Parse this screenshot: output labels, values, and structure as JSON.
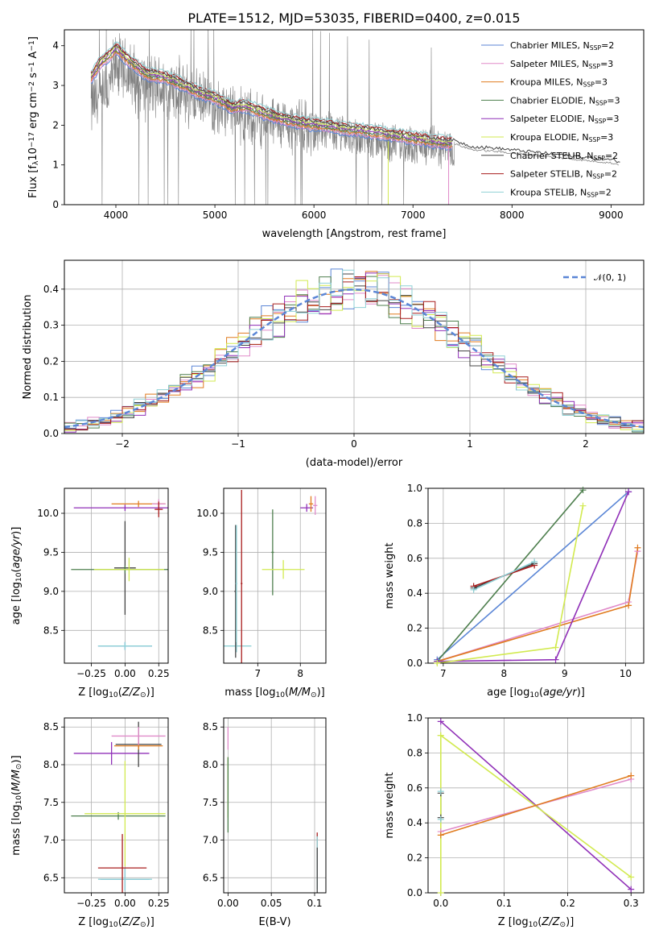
{
  "colors": {
    "Chabrier MILES": "#5b86d6",
    "Salpeter MILES": "#e08ac9",
    "Kroupa MILES": "#e07b1f",
    "Chabrier ELODIE": "#4e7f4e",
    "Salpeter ELODIE": "#9030b8",
    "Kroupa ELODIE": "#d2ea50",
    "Chabrier STELIB": "#444444",
    "Salpeter STELIB": "#a81d1d",
    "Kroupa STELIB": "#8fd1d6"
  },
  "chart_data": [
    {
      "id": "spectrum",
      "type": "line",
      "title": "PLATE=1512, MJD=53035, FIBERID=0400, z=0.015",
      "xlabel": "wavelength [Angstrom, rest frame]",
      "ylabel": "Flux [f_λ 10^-17 erg cm^-2 s^-1 A^-1]",
      "xlim": [
        3480,
        9330
      ],
      "ylim": [
        0,
        4.4
      ],
      "xticks": [
        4000,
        5000,
        6000,
        7000,
        8000,
        9000
      ],
      "yticks": [
        0,
        1,
        2,
        3,
        4
      ],
      "grid": false,
      "legend_position": "top-right",
      "legend": [
        {
          "label": "Chabrier MILES, N",
          "sub": "SSP",
          "suffix": "=2"
        },
        {
          "label": "Salpeter MILES, N",
          "sub": "SSP",
          "suffix": "=3"
        },
        {
          "label": "Kroupa MILES, N",
          "sub": "SSP",
          "suffix": "=3"
        },
        {
          "label": "Chabrier ELODIE, N",
          "sub": "SSP",
          "suffix": "=3"
        },
        {
          "label": "Salpeter ELODIE, N",
          "sub": "SSP",
          "suffix": "=3"
        },
        {
          "label": "Kroupa ELODIE, N",
          "sub": "SSP",
          "suffix": "=3"
        },
        {
          "label": "Chabrier STELIB, N",
          "sub": "SSP",
          "suffix": "=2"
        },
        {
          "label": "Salpeter STELIB, N",
          "sub": "SSP",
          "suffix": "=2"
        },
        {
          "label": "Kroupa STELIB, N",
          "sub": "SSP",
          "suffix": "=2"
        }
      ],
      "data_envelope": {
        "x": [
          3750,
          3900,
          4000,
          4100,
          4300,
          4500,
          4800,
          5000,
          5200,
          5500,
          5800,
          6000,
          6300,
          6700,
          7000,
          7400
        ],
        "y": [
          2.5,
          2.7,
          3.5,
          3.3,
          3.0,
          2.9,
          2.7,
          2.5,
          2.3,
          2.1,
          2.0,
          1.9,
          1.75,
          1.6,
          1.5,
          1.4
        ]
      },
      "model_curve": {
        "x": [
          3750,
          3850,
          3950,
          4000,
          4100,
          4200,
          4300,
          4500,
          4700,
          4860,
          5000,
          5170,
          5300,
          5500,
          5700,
          5900,
          6100,
          6300,
          6560,
          6800,
          7000,
          7200,
          7400,
          7600,
          7800,
          8000,
          8200,
          8400,
          8600,
          8800,
          9000,
          9100
        ],
        "y": [
          3.2,
          3.6,
          3.8,
          3.95,
          3.7,
          3.5,
          3.3,
          3.2,
          3.0,
          2.8,
          2.7,
          2.45,
          2.5,
          2.3,
          2.15,
          2.05,
          2.0,
          1.92,
          1.85,
          1.75,
          1.68,
          1.6,
          1.55,
          1.38,
          1.35,
          1.3,
          1.25,
          1.2,
          1.15,
          1.1,
          1.05,
          1.0
        ]
      }
    },
    {
      "id": "residuals",
      "type": "line",
      "xlabel": "(data-model)/error",
      "ylabel": "Normed distribution",
      "xlim": [
        -2.5,
        2.5
      ],
      "ylim": [
        0,
        0.48
      ],
      "xticks": [
        -2,
        -1,
        0,
        1,
        2
      ],
      "yticks": [
        0.0,
        0.1,
        0.2,
        0.3,
        0.4
      ],
      "grid": true,
      "legend_position": "top-right",
      "legend_label": "𝒩(0, 1)",
      "bin_width": 0.1,
      "normal": {
        "mean": 0,
        "sigma": 1
      }
    },
    {
      "id": "age_vs_Z",
      "type": "scatter",
      "xlabel": "Z [log10(Z/Z⊙)]",
      "ylabel": "age  [log10(age/yr)]",
      "xlim": [
        -0.45,
        0.32
      ],
      "ylim": [
        8.08,
        10.32
      ],
      "xticks": [
        -0.25,
        0.0,
        0.25
      ],
      "yticks": [
        8.5,
        9.0,
        9.5,
        10.0
      ],
      "grid": true,
      "errorbars": [
        {
          "series": "Chabrier MILES",
          "x": 0.0,
          "y": 8.3,
          "xerr": 0.2,
          "yerr": 0.05
        },
        {
          "series": "Kroupa STELIB",
          "x": 0.0,
          "y": 8.3,
          "xerr": 0.2,
          "yerr": 0.05
        },
        {
          "series": "Chabrier STELIB",
          "x": 0.0,
          "y": 9.3,
          "xerr": 0.08,
          "yerr": 0.6
        },
        {
          "series": "Chabrier ELODIE",
          "x": 0.0,
          "y": 9.28,
          "xerr": 0.4,
          "yerr": 0.05
        },
        {
          "series": "Kroupa ELODIE",
          "x": 0.03,
          "y": 9.28,
          "xerr": 0.26,
          "yerr": 0.15
        },
        {
          "series": "Salpeter ELODIE",
          "x": 0.0,
          "y": 10.07,
          "xerr": 0.38,
          "yerr": 0.04
        },
        {
          "series": "Kroupa MILES",
          "x": 0.1,
          "y": 10.12,
          "xerr": 0.2,
          "yerr": 0.04
        },
        {
          "series": "Salpeter MILES",
          "x": 0.25,
          "y": 10.12,
          "xerr": 0.05,
          "yerr": 0.06
        },
        {
          "series": "Salpeter STELIB",
          "x": 0.25,
          "y": 10.05,
          "xerr": 0.03,
          "yerr": 0.1
        }
      ]
    },
    {
      "id": "age_vs_mass",
      "type": "scatter",
      "xlabel": "mass [log10(M/M⊙)]",
      "ylabel": "",
      "xlim": [
        6.2,
        8.6
      ],
      "ylim": [
        8.08,
        10.32
      ],
      "xticks": [
        7,
        8
      ],
      "yticks": [
        8.5,
        9.0,
        9.5,
        10.0
      ],
      "grid": true,
      "errorbars": [
        {
          "series": "Kroupa STELIB",
          "x": 6.5,
          "y": 8.3,
          "xerr": 0.35,
          "yerr": 0.08
        },
        {
          "series": "Chabrier STELIB",
          "x": 6.48,
          "y": 9.0,
          "xerr": 0.03,
          "yerr": 0.85
        },
        {
          "series": "Kroupa STELIB",
          "x": 6.5,
          "y": 9.1,
          "xerr": 0.02,
          "yerr": 0.75
        },
        {
          "series": "Salpeter STELIB",
          "x": 6.62,
          "y": 9.1,
          "xerr": 0.02,
          "yerr": 1.2
        },
        {
          "series": "Chabrier ELODIE",
          "x": 7.35,
          "y": 9.5,
          "xerr": 0.03,
          "yerr": 0.55
        },
        {
          "series": "Kroupa ELODIE",
          "x": 7.6,
          "y": 9.28,
          "xerr": 0.5,
          "yerr": 0.12
        },
        {
          "series": "Salpeter ELODIE",
          "x": 8.15,
          "y": 10.07,
          "xerr": 0.15,
          "yerr": 0.05
        },
        {
          "series": "Kroupa MILES",
          "x": 8.25,
          "y": 10.12,
          "xerr": 0.05,
          "yerr": 0.1
        },
        {
          "series": "Salpeter MILES",
          "x": 8.35,
          "y": 10.1,
          "xerr": 0.05,
          "yerr": 0.12
        }
      ]
    },
    {
      "id": "weight_vs_age",
      "type": "line",
      "xlabel": "age  [log10(age/yr)]",
      "ylabel": "mass weight",
      "xlim": [
        6.75,
        10.3
      ],
      "ylim": [
        0,
        1.0
      ],
      "xticks": [
        7,
        8,
        9,
        10
      ],
      "yticks": [
        0.0,
        0.2,
        0.4,
        0.6,
        0.8,
        1.0
      ],
      "grid": true,
      "series": [
        {
          "name": "Chabrier MILES",
          "x": [
            6.9,
            10.05
          ],
          "y": [
            0.02,
            0.98
          ]
        },
        {
          "name": "Salpeter MILES",
          "x": [
            6.9,
            10.05,
            10.2
          ],
          "y": [
            0.01,
            0.35,
            0.64
          ]
        },
        {
          "name": "Kroupa MILES",
          "x": [
            6.9,
            10.05,
            10.2
          ],
          "y": [
            0.01,
            0.33,
            0.66
          ]
        },
        {
          "name": "Chabrier ELODIE",
          "x": [
            6.9,
            9.3
          ],
          "y": [
            0.01,
            0.99
          ]
        },
        {
          "name": "Salpeter ELODIE",
          "x": [
            6.9,
            8.85,
            10.05
          ],
          "y": [
            0.01,
            0.02,
            0.98
          ]
        },
        {
          "name": "Kroupa ELODIE",
          "x": [
            6.9,
            8.85,
            9.3
          ],
          "y": [
            0.0,
            0.09,
            0.9
          ]
        },
        {
          "name": "Chabrier STELIB",
          "x": [
            7.5,
            8.5
          ],
          "y": [
            0.43,
            0.57
          ]
        },
        {
          "name": "Salpeter STELIB",
          "x": [
            7.5,
            8.5
          ],
          "y": [
            0.44,
            0.56
          ]
        },
        {
          "name": "Kroupa STELIB",
          "x": [
            7.5,
            8.5
          ],
          "y": [
            0.42,
            0.58
          ]
        }
      ]
    },
    {
      "id": "mass_vs_Z",
      "type": "scatter",
      "xlabel": "Z [log10(Z/Z⊙)]",
      "ylabel": "mass [log10(M/M⊙)]",
      "xlim": [
        -0.45,
        0.32
      ],
      "ylim": [
        6.3,
        8.62
      ],
      "xticks": [
        -0.25,
        0.0,
        0.25
      ],
      "yticks": [
        6.5,
        7.0,
        7.5,
        8.0,
        8.5
      ],
      "grid": true,
      "errorbars": [
        {
          "series": "Chabrier MILES",
          "x": 0.0,
          "y": 6.48,
          "xerr": 0.18,
          "yerr": 0.15
        },
        {
          "series": "Kroupa STELIB",
          "x": 0.0,
          "y": 6.48,
          "xerr": 0.2,
          "yerr": 0.15
        },
        {
          "series": "Salpeter STELIB",
          "x": -0.02,
          "y": 6.63,
          "xerr": 0.18,
          "yerr": 0.45
        },
        {
          "series": "Chabrier ELODIE",
          "x": -0.05,
          "y": 7.32,
          "xerr": 0.35,
          "yerr": 0.05
        },
        {
          "series": "Kroupa ELODIE",
          "x": 0.0,
          "y": 7.35,
          "xerr": 0.3,
          "yerr": 0.7
        },
        {
          "series": "Salpeter ELODIE",
          "x": -0.1,
          "y": 8.15,
          "xerr": 0.28,
          "yerr": 0.15
        },
        {
          "series": "Chabrier STELIB",
          "x": 0.1,
          "y": 8.27,
          "xerr": 0.17,
          "yerr": 0.3
        },
        {
          "series": "Kroupa MILES",
          "x": 0.1,
          "y": 8.25,
          "xerr": 0.18,
          "yerr": 0.05
        },
        {
          "series": "Salpeter MILES",
          "x": 0.1,
          "y": 8.38,
          "xerr": 0.2,
          "yerr": 0.12
        }
      ]
    },
    {
      "id": "mass_vs_EBV",
      "type": "scatter",
      "xlabel": "E(B-V)",
      "ylabel": "",
      "xlim": [
        -0.005,
        0.113
      ],
      "ylim": [
        6.3,
        8.62
      ],
      "xticks": [
        0.0,
        0.05,
        0.1
      ],
      "yticks": [
        6.5,
        7.0,
        7.5,
        8.0,
        8.5
      ],
      "grid": true,
      "errorbars": [
        {
          "series": "Kroupa ELODIE",
          "x": 0.0,
          "y": 7.7,
          "xerr": 0.0,
          "yerr": 0.4
        },
        {
          "series": "Chabrier ELODIE",
          "x": 0.0,
          "y": 7.6,
          "xerr": 0.0,
          "yerr": 0.5
        },
        {
          "series": "Salpeter MILES",
          "x": 0.0,
          "y": 8.35,
          "xerr": 0.0,
          "yerr": 0.15
        },
        {
          "series": "Salpeter STELIB",
          "x": 0.103,
          "y": 6.8,
          "xerr": 0.0,
          "yerr": 0.3
        },
        {
          "series": "Kroupa STELIB",
          "x": 0.103,
          "y": 6.7,
          "xerr": 0.0,
          "yerr": 0.35
        },
        {
          "series": "Chabrier STELIB",
          "x": 0.103,
          "y": 6.6,
          "xerr": 0.0,
          "yerr": 0.3
        }
      ]
    },
    {
      "id": "weight_vs_Z",
      "type": "line",
      "xlabel": "Z [log10(Z/Z⊙)]",
      "ylabel": "mass weight",
      "xlim": [
        -0.02,
        0.32
      ],
      "ylim": [
        0,
        1.0
      ],
      "xticks": [
        0.0,
        0.1,
        0.2,
        0.3
      ],
      "yticks": [
        0.0,
        0.2,
        0.4,
        0.6,
        0.8,
        1.0
      ],
      "grid": true,
      "series": [
        {
          "name": "Salpeter ELODIE",
          "x": [
            0.0,
            0.3
          ],
          "y": [
            0.98,
            0.02
          ]
        },
        {
          "name": "Kroupa ELODIE",
          "x": [
            0.0,
            0.3
          ],
          "y": [
            0.9,
            0.09
          ]
        },
        {
          "name": "Salpeter MILES",
          "x": [
            0.0,
            0.3
          ],
          "y": [
            0.35,
            0.65
          ]
        },
        {
          "name": "Kroupa MILES",
          "x": [
            0.0,
            0.3
          ],
          "y": [
            0.33,
            0.67
          ]
        },
        {
          "name": "Chabrier STELIB",
          "x": [
            0.0,
            0.0
          ],
          "y": [
            0.43,
            0.57
          ]
        },
        {
          "name": "Kroupa STELIB",
          "x": [
            0.0,
            0.0
          ],
          "y": [
            0.42,
            0.58
          ]
        },
        {
          "name": "Kroupa ELODIE",
          "x": [
            0.0,
            0.0
          ],
          "y": [
            0.0,
            0.9
          ]
        }
      ]
    }
  ]
}
